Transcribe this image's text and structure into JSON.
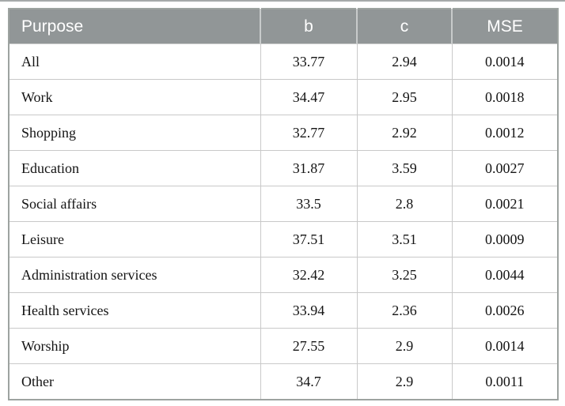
{
  "table": {
    "columns": [
      {
        "key": "purpose",
        "label": "Purpose"
      },
      {
        "key": "b",
        "label": "b"
      },
      {
        "key": "c",
        "label": "c"
      },
      {
        "key": "mse",
        "label": "MSE"
      }
    ],
    "rows": [
      {
        "purpose": "All",
        "b": "33.77",
        "c": "2.94",
        "mse": "0.0014"
      },
      {
        "purpose": "Work",
        "b": "34.47",
        "c": "2.95",
        "mse": "0.0018"
      },
      {
        "purpose": "Shopping",
        "b": "32.77",
        "c": "2.92",
        "mse": "0.0012"
      },
      {
        "purpose": "Education",
        "b": "31.87",
        "c": "3.59",
        "mse": "0.0027"
      },
      {
        "purpose": "Social affairs",
        "b": "33.5",
        "c": "2.8",
        "mse": "0.0021"
      },
      {
        "purpose": "Leisure",
        "b": "37.51",
        "c": "3.51",
        "mse": "0.0009"
      },
      {
        "purpose": "Administration services",
        "b": "32.42",
        "c": "3.25",
        "mse": "0.0044"
      },
      {
        "purpose": "Health services",
        "b": "33.94",
        "c": "2.36",
        "mse": "0.0026"
      },
      {
        "purpose": "Worship",
        "b": "27.55",
        "c": "2.9",
        "mse": "0.0014"
      },
      {
        "purpose": "Other",
        "b": "34.7",
        "c": "2.9",
        "mse": "0.0011"
      }
    ]
  },
  "chart_data": {
    "type": "table",
    "title": "",
    "columns": [
      "Purpose",
      "b",
      "c",
      "MSE"
    ],
    "rows": [
      [
        "All",
        33.77,
        2.94,
        0.0014
      ],
      [
        "Work",
        34.47,
        2.95,
        0.0018
      ],
      [
        "Shopping",
        32.77,
        2.92,
        0.0012
      ],
      [
        "Education",
        31.87,
        3.59,
        0.0027
      ],
      [
        "Social affairs",
        33.5,
        2.8,
        0.0021
      ],
      [
        "Leisure",
        37.51,
        3.51,
        0.0009
      ],
      [
        "Administration services",
        32.42,
        3.25,
        0.0044
      ],
      [
        "Health services",
        33.94,
        2.36,
        0.0026
      ],
      [
        "Worship",
        27.55,
        2.9,
        0.0014
      ],
      [
        "Other",
        34.7,
        2.9,
        0.0011
      ]
    ]
  },
  "colors": {
    "header_bg": "#919697",
    "header_text": "#ffffff",
    "row_border": "#c9c9c9",
    "outer_border": "#9da3a0",
    "top_rule": "#a6aaaa",
    "body_text": "#141414"
  }
}
